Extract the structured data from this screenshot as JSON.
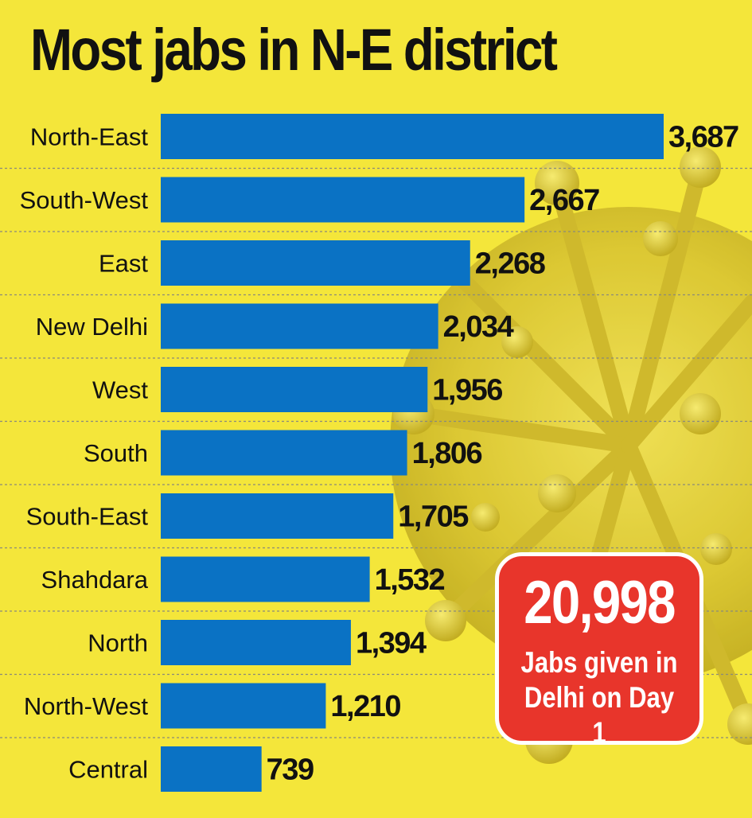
{
  "colors": {
    "background": "#f4e63a",
    "bar": "#0a72c4",
    "text": "#111111",
    "callout_fill": "#e8352b",
    "callout_border": "#ffffff"
  },
  "background_image": "virus-illustration",
  "chart_data": {
    "type": "bar",
    "orientation": "horizontal",
    "title": "Most jabs in N-E district",
    "categories": [
      "North-East",
      "South-West",
      "East",
      "New Delhi",
      "West",
      "South",
      "South-East",
      "Shahdara",
      "North",
      "North-West",
      "Central"
    ],
    "values": [
      3687,
      2667,
      2268,
      2034,
      1956,
      1806,
      1705,
      1532,
      1394,
      1210,
      739
    ],
    "value_labels": [
      "3,687",
      "2,667",
      "2,268",
      "2,034",
      "1,956",
      "1,806",
      "1,705",
      "1,532",
      "1,394",
      "1,210",
      "739"
    ],
    "xlim": [
      0,
      3687
    ],
    "grid": false,
    "row_separators": "dotted"
  },
  "callout": {
    "value": "20,998",
    "caption_line1": "Jabs given in",
    "caption_line2": "Delhi on Day 1"
  }
}
